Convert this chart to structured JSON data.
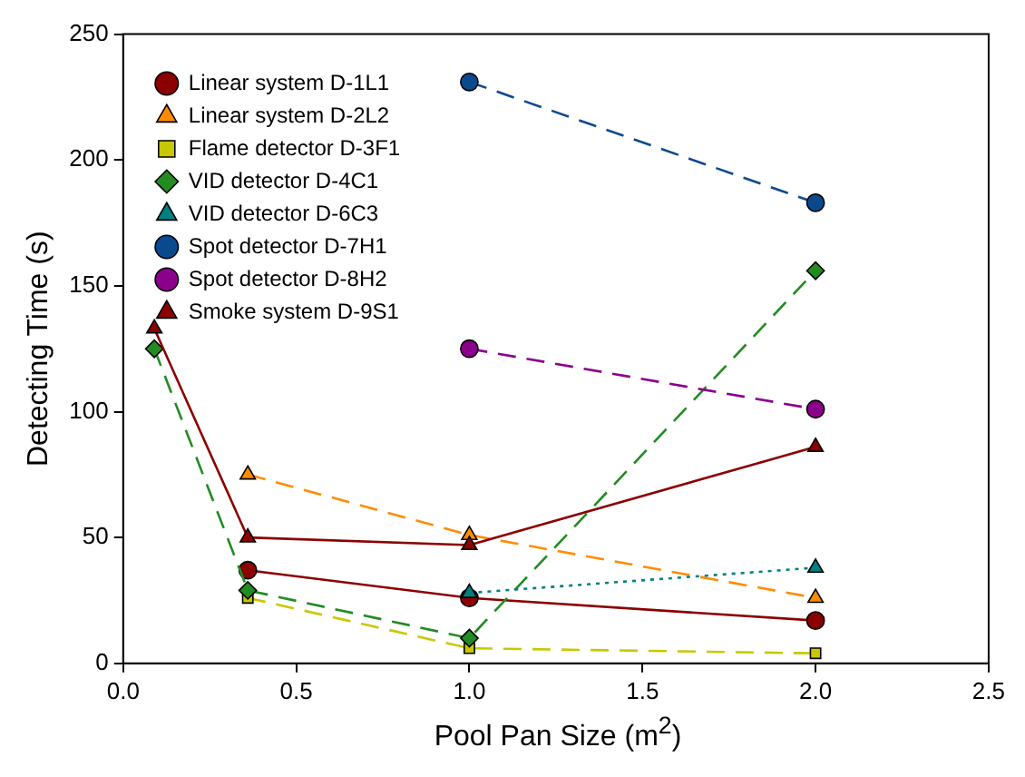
{
  "chart_data": {
    "type": "line",
    "xlabel": "Pool Pan Size (m$^{2}$)",
    "ylabel": "Detecting Time (s)",
    "xlim": [
      0,
      2.5
    ],
    "xticks": [
      {
        "value": 0,
        "label": "0.0"
      },
      {
        "value": 0.5,
        "label": "0.5"
      },
      {
        "value": 1,
        "label": "1.0"
      },
      {
        "value": 1.5,
        "label": "1.5"
      },
      {
        "value": 2,
        "label": "2.0"
      },
      {
        "value": 2.5,
        "label": "2.5"
      }
    ],
    "ylim": [
      0,
      250
    ],
    "yticks": [
      0,
      50,
      100,
      150,
      200,
      250
    ],
    "grid": false,
    "legend": "top left",
    "series": [
      {
        "name": "Linear system D-1L1",
        "color": "#8b0000",
        "marker": "circle",
        "line_style": "solid",
        "x": [
          0.36,
          1,
          2
        ],
        "values": [
          37,
          26,
          17
        ]
      },
      {
        "name": "Linear system D-2L2",
        "color": "#ff8c00",
        "marker": "triangle",
        "line_style": "dashed",
        "x": [
          0.36,
          1,
          2
        ],
        "values": [
          75,
          51,
          26
        ]
      },
      {
        "name": "Flame detector D-3F1",
        "color": "#c8c800",
        "marker": "square",
        "line_style": "dashed",
        "x": [
          0.36,
          1,
          2
        ],
        "values": [
          26,
          6,
          4
        ]
      },
      {
        "name": "VID detector D-4C1",
        "color": "#228b22",
        "marker": "diamond",
        "line_style": "dashed",
        "x": [
          0.09,
          0.36,
          1,
          2
        ],
        "values": [
          125,
          29,
          10,
          156
        ]
      },
      {
        "name": "VID detector D-6C3",
        "color": "#008080",
        "marker": "triangle",
        "line_style": "dotted",
        "x": [
          1,
          2
        ],
        "values": [
          28,
          38
        ]
      },
      {
        "name": "Spot detector D-7H1",
        "color": "#0a4a8c",
        "marker": "circle",
        "line_style": "dashed",
        "x": [
          1,
          2
        ],
        "values": [
          231,
          183
        ]
      },
      {
        "name": "Spot detector D-8H2",
        "color": "#8b008b",
        "marker": "circle",
        "line_style": "dashed",
        "x": [
          1,
          2
        ],
        "values": [
          125,
          101
        ]
      },
      {
        "name": "Smoke system D-9S1",
        "color": "#8b0000",
        "marker": "triangle",
        "line_style": "solid",
        "x": [
          0.09,
          0.36,
          1,
          2
        ],
        "values": [
          133,
          50,
          47,
          86
        ]
      }
    ]
  }
}
